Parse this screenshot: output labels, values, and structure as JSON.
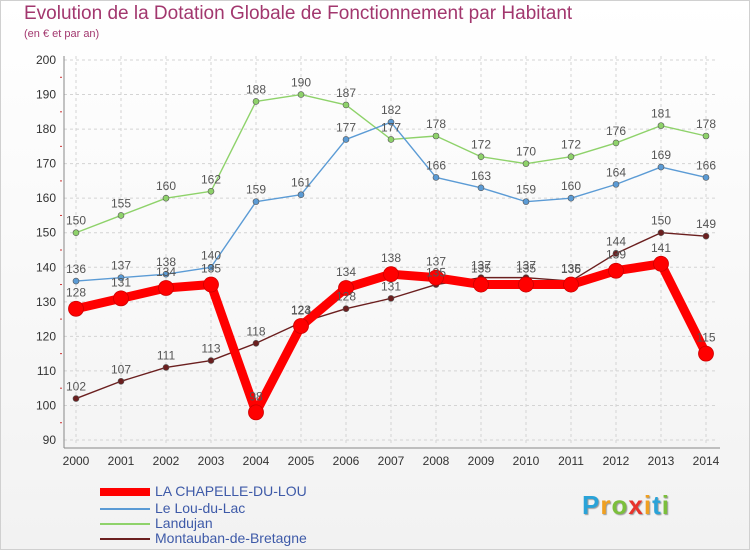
{
  "chart_data": {
    "type": "line",
    "title": "Evolution de la Dotation Globale de Fonctionnement par Habitant",
    "subtitle": "(en € et par an)",
    "x": [
      "2000",
      "2001",
      "2002",
      "2003",
      "2004",
      "2005",
      "2006",
      "2007",
      "2008",
      "2009",
      "2010",
      "2011",
      "2012",
      "2013",
      "2014"
    ],
    "ylim": [
      90,
      200
    ],
    "yticks": [
      "90",
      "100",
      "110",
      "120",
      "130",
      "140",
      "150",
      "160",
      "170",
      "180",
      "190",
      "200"
    ],
    "grid": true,
    "legend_position": "bottom-left",
    "series": [
      {
        "name": "Montauban-de-Bretagne",
        "color": "#6b1f1f",
        "values": [
          102,
          107,
          111,
          113,
          118,
          124,
          128,
          131,
          135,
          137,
          137,
          136,
          144,
          150,
          149
        ]
      },
      {
        "name": "Landujan",
        "color": "#8ed26a",
        "values": [
          150,
          155,
          160,
          162,
          188,
          190,
          187,
          177,
          178,
          172,
          170,
          172,
          176,
          181,
          178
        ]
      },
      {
        "name": "Le Lou-du-Lac",
        "color": "#5b9bd5",
        "values": [
          136,
          137,
          138,
          140,
          159,
          161,
          177,
          182,
          166,
          163,
          159,
          160,
          164,
          169,
          166
        ]
      },
      {
        "name": "LA CHAPELLE-DU-LOU",
        "color": "#ff0000",
        "values": [
          128,
          131,
          134,
          135,
          98,
          123,
          134,
          138,
          137,
          135,
          135,
          135,
          139,
          141,
          115
        ]
      }
    ]
  },
  "legend": {
    "items": [
      {
        "label": "LA CHAPELLE-DU-LOU",
        "color": "#ff0000"
      },
      {
        "label": "Le Lou-du-Lac",
        "color": "#5b9bd5"
      },
      {
        "label": "Landujan",
        "color": "#8ed26a"
      },
      {
        "label": "Montauban-de-Bretagne",
        "color": "#6b1f1f"
      }
    ]
  },
  "logo": {
    "letters": [
      "P",
      "r",
      "o",
      "x",
      "i",
      "t",
      "i"
    ],
    "colors": [
      "#2aa3d8",
      "#f0a020",
      "#7cbf3c",
      "#e8342c",
      "#f0a020",
      "#2aa3d8",
      "#7cbf3c"
    ]
  }
}
